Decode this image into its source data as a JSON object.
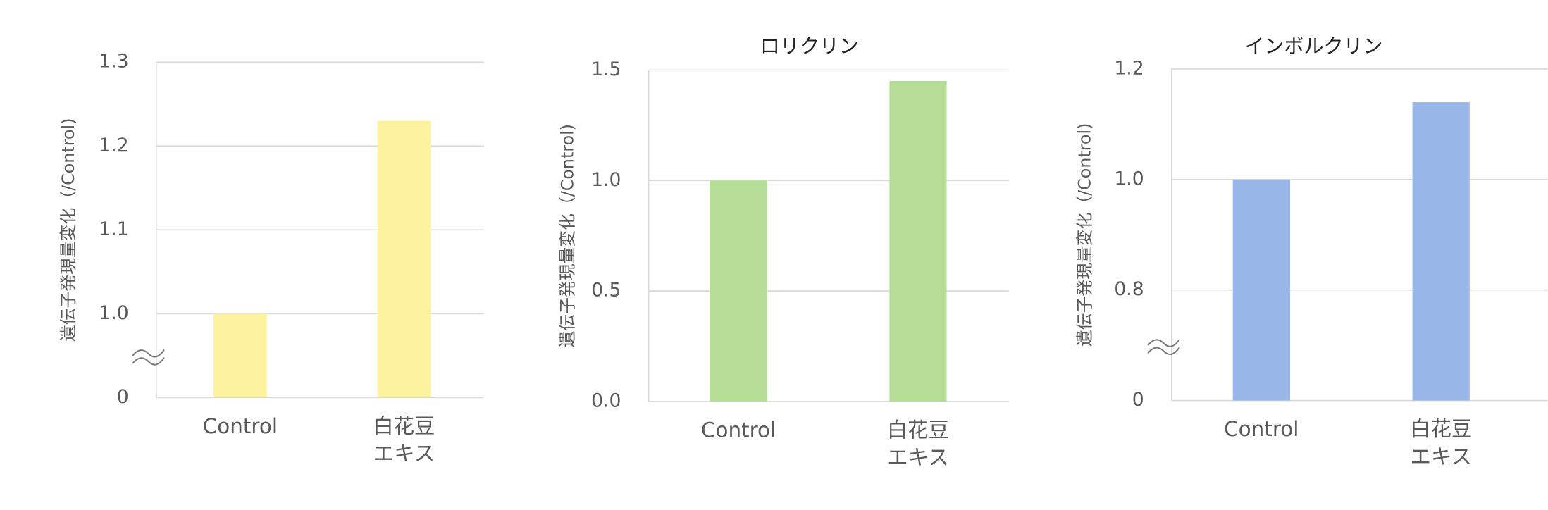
{
  "chart_data": [
    {
      "type": "bar",
      "y_label": "遺伝子発現量変化（/Control)",
      "categories": [
        [
          "Control"
        ],
        [
          "白花豆",
          "エキス"
        ]
      ],
      "values": [
        1.0,
        1.23
      ],
      "color": "#fdf2a0",
      "ylim": [
        0,
        1.3
      ],
      "ybreak": [
        0,
        0.9
      ],
      "yticks": [
        0,
        {
          "value": 1.0,
          "label": "1.0"
        },
        1.1,
        1.2,
        1.3
      ],
      "grid": true
    },
    {
      "type": "bar",
      "title": "ロリクリン",
      "y_label": "遺伝子発現量変化（/Control)",
      "categories": [
        [
          "Control"
        ],
        [
          "白花豆",
          "エキス"
        ]
      ],
      "values": [
        1.0,
        1.45
      ],
      "color": "#b5dd96",
      "ylim": [
        0,
        1.5
      ],
      "yticks": [
        {
          "value": 0,
          "label": "0.0"
        },
        0.5,
        {
          "value": 1.0,
          "label": "1.0"
        },
        1.5
      ],
      "grid": true
    },
    {
      "type": "bar",
      "title": "インボルクリン",
      "y_label": "遺伝子発現量変化（/Control)",
      "categories": [
        [
          "Control"
        ],
        [
          "白花豆",
          "エキス"
        ]
      ],
      "values": [
        1.0,
        1.14
      ],
      "color": "#99b6e9",
      "ylim": [
        0,
        1.2
      ],
      "ybreak": [
        0,
        0.6
      ],
      "yticks": [
        0,
        0.8,
        {
          "value": 1.0,
          "label": "1.0"
        },
        1.2
      ],
      "grid": true
    }
  ]
}
